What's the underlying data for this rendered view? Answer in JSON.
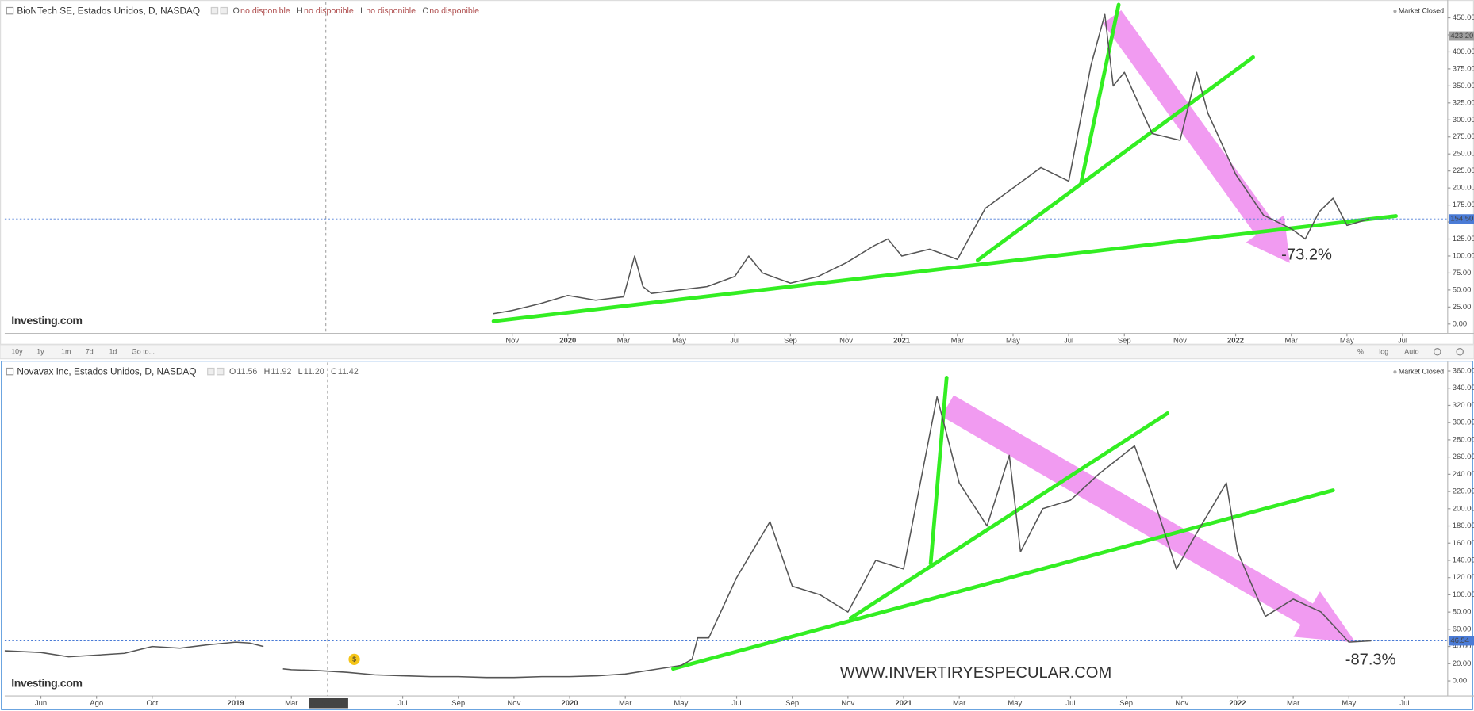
{
  "toolbar": {
    "periods": [
      "10y",
      "1y",
      "1m",
      "7d",
      "1d"
    ],
    "goto": "Go to...",
    "options": [
      "%",
      "log",
      "Auto"
    ]
  },
  "chart_data": [
    {
      "type": "line",
      "title": "BioNTech SE, Estados Unidos, D, NASDAQ",
      "status": [
        {
          "key": "O",
          "text": "no disponible"
        },
        {
          "key": "H",
          "text": "no disponible"
        },
        {
          "key": "L",
          "text": "no disponible"
        },
        {
          "key": "C",
          "text": "no disponible"
        }
      ],
      "market_status": "Market Closed",
      "logo": "Investing.com",
      "annotation": "-73.2%",
      "color": "#555555",
      "x": [
        -2.7,
        -2,
        -1,
        0,
        1,
        2,
        2.4,
        2.7,
        3,
        4,
        5,
        6,
        6.5,
        7,
        8,
        9,
        10,
        11,
        11.5,
        12,
        13,
        14,
        15,
        16,
        17,
        18,
        18.8,
        19.3,
        19.6,
        20,
        21,
        22,
        22.6,
        23,
        24,
        25,
        26,
        26.5,
        27,
        27.5,
        28,
        28.8
      ],
      "values": [
        15,
        20,
        30,
        42,
        35,
        40,
        100,
        55,
        45,
        50,
        55,
        70,
        100,
        75,
        60,
        70,
        90,
        115,
        125,
        100,
        110,
        95,
        170,
        200,
        230,
        210,
        380,
        455,
        350,
        370,
        280,
        270,
        370,
        310,
        220,
        160,
        140,
        125,
        165,
        185,
        145,
        154.5
      ],
      "xlim": [
        -20.24,
        31.62
      ],
      "xticks": [
        {
          "value": -2,
          "label": "Nov"
        },
        {
          "value": 0,
          "label": "2020"
        },
        {
          "value": 2,
          "label": "Mar"
        },
        {
          "value": 4,
          "label": "May"
        },
        {
          "value": 6,
          "label": "Jul"
        },
        {
          "value": 8,
          "label": "Sep"
        },
        {
          "value": 10,
          "label": "Nov"
        },
        {
          "value": 12,
          "label": "2021"
        },
        {
          "value": 14,
          "label": "Mar"
        },
        {
          "value": 16,
          "label": "May"
        },
        {
          "value": 18,
          "label": "Jul"
        },
        {
          "value": 20,
          "label": "Sep"
        },
        {
          "value": 22,
          "label": "Nov"
        },
        {
          "value": 24,
          "label": "2022"
        },
        {
          "value": 26,
          "label": "Mar"
        },
        {
          "value": 28,
          "label": "May"
        },
        {
          "value": 30,
          "label": "Jul"
        }
      ],
      "ylim": [
        -13.8,
        472.1
      ],
      "yticks": [
        {
          "value": 0,
          "label": "0.00"
        },
        {
          "value": 25,
          "label": "25.00"
        },
        {
          "value": 50,
          "label": "50.00"
        },
        {
          "value": 75,
          "label": "75.00"
        },
        {
          "value": 100,
          "label": "100.00"
        },
        {
          "value": 125,
          "label": "125.00"
        },
        {
          "value": 150,
          "label": "150.00"
        },
        {
          "value": 175,
          "label": "175.00"
        },
        {
          "value": 200,
          "label": "200.00"
        },
        {
          "value": 225,
          "label": "225.00"
        },
        {
          "value": 250,
          "label": "250.00"
        },
        {
          "value": 275,
          "label": "275.00"
        },
        {
          "value": 300,
          "label": "300.00"
        },
        {
          "value": 325,
          "label": "325.00"
        },
        {
          "value": 350,
          "label": "350.00"
        },
        {
          "value": 375,
          "label": "375.00"
        },
        {
          "value": 400,
          "label": "400.00"
        },
        {
          "value": 425,
          "label": "425.00"
        },
        {
          "value": 450,
          "label": "450.00"
        }
      ],
      "price_markers": [
        {
          "value": 423.2,
          "label": "423.20",
          "color": "#9e9e9e"
        },
        {
          "value": 154.5,
          "label": "154.50",
          "color": "#4a7bd6"
        }
      ],
      "crosshair": {
        "value": -8.7
      },
      "grid": false
    },
    {
      "type": "line",
      "title": "Novavax Inc, Estados Unidos, D, NASDAQ",
      "status": [
        {
          "key": "O",
          "text": "11.56"
        },
        {
          "key": "H",
          "text": "11.92"
        },
        {
          "key": "L",
          "text": "11.20"
        },
        {
          "key": "C",
          "text": "11.42"
        }
      ],
      "market_status": "Market Closed",
      "logo": "Investing.com",
      "annotation": "-87.3%",
      "watermark": "WWW.INVERTIRYESPECULAR.COM",
      "color": "#555555",
      "x": [
        -20.3,
        -19,
        -18,
        -17,
        -16,
        -15,
        -14,
        -13,
        -12,
        -11.5,
        -11,
        -10.6,
        -10.3,
        -10,
        -9,
        -8,
        -7,
        -6,
        -5,
        -4,
        -3,
        -2,
        -1,
        0,
        1,
        2,
        3,
        4,
        4.4,
        4.6,
        5,
        6,
        7.2,
        8,
        9,
        10,
        11,
        12,
        13.2,
        14,
        15,
        15.8,
        16.2,
        17,
        18,
        19,
        20.3,
        21,
        21.8,
        22.5,
        23.6,
        24,
        25,
        26,
        27,
        28,
        28.8
      ],
      "values": [
        35,
        33,
        28,
        30,
        32,
        40,
        38,
        42,
        45,
        44,
        40,
        null,
        14,
        13,
        12,
        10,
        7,
        6,
        5,
        5,
        4,
        4,
        5,
        5,
        6,
        8,
        13,
        18,
        25,
        50,
        50,
        120,
        185,
        110,
        100,
        80,
        140,
        130,
        330,
        230,
        180,
        262,
        150,
        200,
        210,
        240,
        273,
        210,
        130,
        170,
        230,
        150,
        75,
        95,
        80,
        45,
        46.54
      ],
      "xlim": [
        -20.3,
        31.55
      ],
      "xticks": [
        {
          "value": -19,
          "label": "Jun"
        },
        {
          "value": -17,
          "label": "Ago"
        },
        {
          "value": -15,
          "label": "Oct"
        },
        {
          "value": -12,
          "label": "2019"
        },
        {
          "value": -10,
          "label": "Mar"
        },
        {
          "value": -6,
          "label": "Jul"
        },
        {
          "value": -4,
          "label": "Sep"
        },
        {
          "value": -2,
          "label": "Nov"
        },
        {
          "value": 0,
          "label": "2020"
        },
        {
          "value": 2,
          "label": "Mar"
        },
        {
          "value": 4,
          "label": "May"
        },
        {
          "value": 6,
          "label": "Jul"
        },
        {
          "value": 8,
          "label": "Sep"
        },
        {
          "value": 10,
          "label": "Nov"
        },
        {
          "value": 12,
          "label": "2021"
        },
        {
          "value": 14,
          "label": "Mar"
        },
        {
          "value": 16,
          "label": "May"
        },
        {
          "value": 18,
          "label": "Jul"
        },
        {
          "value": 20,
          "label": "Sep"
        },
        {
          "value": 22,
          "label": "Nov"
        },
        {
          "value": 24,
          "label": "2022"
        },
        {
          "value": 26,
          "label": "Mar"
        },
        {
          "value": 28,
          "label": "May"
        },
        {
          "value": 30,
          "label": "Jul"
        }
      ],
      "ylim": [
        -17.5,
        368.7
      ],
      "yticks": [
        {
          "value": 0,
          "label": "0.00"
        },
        {
          "value": 20,
          "label": "20.00"
        },
        {
          "value": 40,
          "label": "40.00"
        },
        {
          "value": 60,
          "label": "60.00"
        },
        {
          "value": 80,
          "label": "80.00"
        },
        {
          "value": 100,
          "label": "100.00"
        },
        {
          "value": 120,
          "label": "120.00"
        },
        {
          "value": 140,
          "label": "140.00"
        },
        {
          "value": 160,
          "label": "160.00"
        },
        {
          "value": 180,
          "label": "180.00"
        },
        {
          "value": 200,
          "label": "200.00"
        },
        {
          "value": 220,
          "label": "220.00"
        },
        {
          "value": 240,
          "label": "240.00"
        },
        {
          "value": 260,
          "label": "260.00"
        },
        {
          "value": 280,
          "label": "280.00"
        },
        {
          "value": 300,
          "label": "300.00"
        },
        {
          "value": 320,
          "label": "320.00"
        },
        {
          "value": 340,
          "label": "340.00"
        },
        {
          "value": 360,
          "label": "360.00"
        }
      ],
      "price_markers": [
        {
          "value": 46.54,
          "label": "46.54",
          "color": "#4a7bd6"
        }
      ],
      "crosshair": {
        "value": -8.7,
        "label": "2019-04-10"
      },
      "event_marker": {
        "value": -7.74,
        "label": "$"
      },
      "grid": false
    }
  ]
}
